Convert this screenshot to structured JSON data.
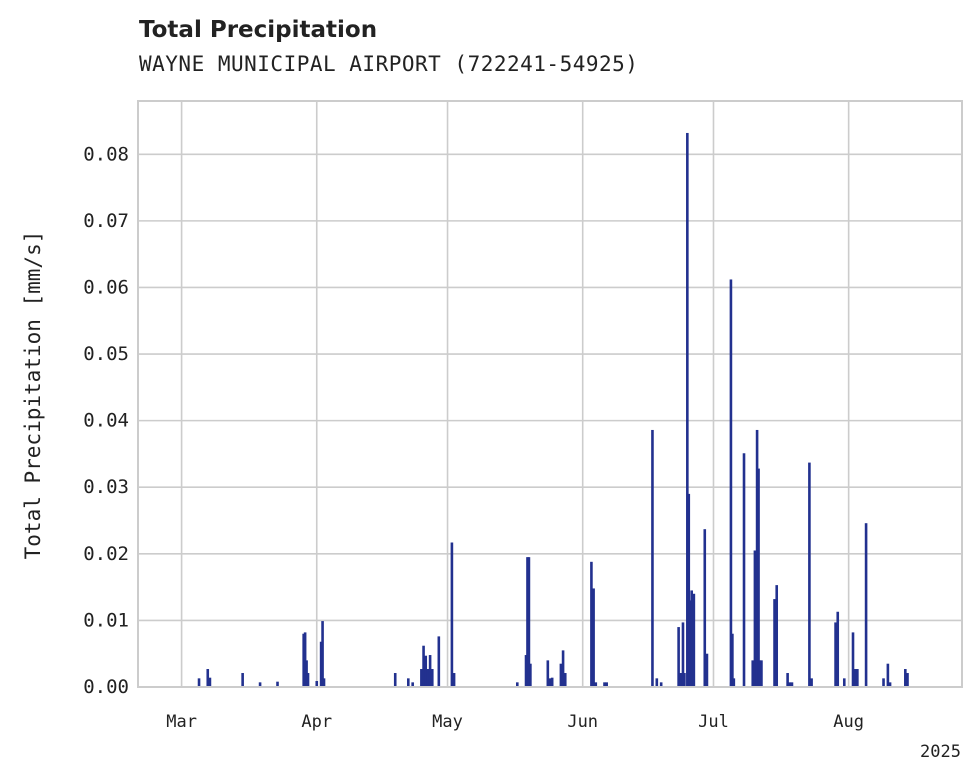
{
  "chart_data": {
    "type": "bar",
    "title": "Total Precipitation",
    "subtitle": "WAYNE MUNICIPAL AIRPORT (722241-54925)",
    "xlabel": "",
    "ylabel": "Total Precipitation [mm/s]",
    "year_label": "2025",
    "xlim": [
      "2025-02-19",
      "2025-08-27"
    ],
    "ylim": [
      0,
      0.088
    ],
    "yticks": [
      0.0,
      0.01,
      0.02,
      0.03,
      0.04,
      0.05,
      0.06,
      0.07,
      0.08
    ],
    "ytick_labels": [
      "0.00",
      "0.01",
      "0.02",
      "0.03",
      "0.04",
      "0.05",
      "0.06",
      "0.07",
      "0.08"
    ],
    "xticks": [
      {
        "date": "2025-03-01",
        "label": "Mar"
      },
      {
        "date": "2025-04-01",
        "label": "Apr"
      },
      {
        "date": "2025-05-01",
        "label": "May"
      },
      {
        "date": "2025-06-01",
        "label": "Jun"
      },
      {
        "date": "2025-07-01",
        "label": "Jul"
      },
      {
        "date": "2025-08-01",
        "label": "Aug"
      }
    ],
    "grid": true,
    "bar_color": "#22318f",
    "series": [
      {
        "name": "Total Precipitation",
        "points": [
          {
            "x": "2025-03-05",
            "y": 0.0013
          },
          {
            "x": "2025-03-07",
            "y": 0.0027
          },
          {
            "x": "2025-03-07T12:00",
            "y": 0.0014
          },
          {
            "x": "2025-03-15",
            "y": 0.0021
          },
          {
            "x": "2025-03-19",
            "y": 0.0007
          },
          {
            "x": "2025-03-23",
            "y": 0.0008
          },
          {
            "x": "2025-03-29",
            "y": 0.008
          },
          {
            "x": "2025-03-29T08:00",
            "y": 0.0082
          },
          {
            "x": "2025-03-29T16:00",
            "y": 0.004
          },
          {
            "x": "2025-03-30",
            "y": 0.0021
          },
          {
            "x": "2025-04-01",
            "y": 0.0009
          },
          {
            "x": "2025-04-02",
            "y": 0.0068
          },
          {
            "x": "2025-04-02T08:00",
            "y": 0.0099
          },
          {
            "x": "2025-04-02T16:00",
            "y": 0.0013
          },
          {
            "x": "2025-04-19",
            "y": 0.0021
          },
          {
            "x": "2025-04-22",
            "y": 0.0013
          },
          {
            "x": "2025-04-23",
            "y": 0.0007
          },
          {
            "x": "2025-04-25",
            "y": 0.0027
          },
          {
            "x": "2025-04-25T12:00",
            "y": 0.0062
          },
          {
            "x": "2025-04-26",
            "y": 0.0047
          },
          {
            "x": "2025-04-26T12:00",
            "y": 0.0027
          },
          {
            "x": "2025-04-27",
            "y": 0.0048
          },
          {
            "x": "2025-04-27T12:00",
            "y": 0.0027
          },
          {
            "x": "2025-04-29",
            "y": 0.0076
          },
          {
            "x": "2025-05-02",
            "y": 0.0217
          },
          {
            "x": "2025-05-02T12:00",
            "y": 0.0021
          },
          {
            "x": "2025-05-17",
            "y": 0.0007
          },
          {
            "x": "2025-05-19",
            "y": 0.0048
          },
          {
            "x": "2025-05-19T08:00",
            "y": 0.0195
          },
          {
            "x": "2025-05-19T16:00",
            "y": 0.0195
          },
          {
            "x": "2025-05-20",
            "y": 0.0035
          },
          {
            "x": "2025-05-24",
            "y": 0.004
          },
          {
            "x": "2025-05-24T12:00",
            "y": 0.0013
          },
          {
            "x": "2025-05-25",
            "y": 0.0014
          },
          {
            "x": "2025-05-27",
            "y": 0.0035
          },
          {
            "x": "2025-05-27T12:00",
            "y": 0.0055
          },
          {
            "x": "2025-05-28",
            "y": 0.0021
          },
          {
            "x": "2025-06-03",
            "y": 0.0188
          },
          {
            "x": "2025-06-03T12:00",
            "y": 0.0148
          },
          {
            "x": "2025-06-04",
            "y": 0.0007
          },
          {
            "x": "2025-06-06",
            "y": 0.0007
          },
          {
            "x": "2025-06-06T12:00",
            "y": 0.0007
          },
          {
            "x": "2025-06-17",
            "y": 0.0386
          },
          {
            "x": "2025-06-18",
            "y": 0.0013
          },
          {
            "x": "2025-06-19",
            "y": 0.0007
          },
          {
            "x": "2025-06-23",
            "y": 0.009
          },
          {
            "x": "2025-06-23T12:00",
            "y": 0.0021
          },
          {
            "x": "2025-06-24",
            "y": 0.0097
          },
          {
            "x": "2025-06-24T08:00",
            "y": 0.0021
          },
          {
            "x": "2025-06-25",
            "y": 0.0832
          },
          {
            "x": "2025-06-25T08:00",
            "y": 0.029
          },
          {
            "x": "2025-06-25T16:00",
            "y": 0.013
          },
          {
            "x": "2025-06-26",
            "y": 0.0145
          },
          {
            "x": "2025-06-26T12:00",
            "y": 0.014
          },
          {
            "x": "2025-06-29",
            "y": 0.0237
          },
          {
            "x": "2025-06-29T12:00",
            "y": 0.005
          },
          {
            "x": "2025-07-05",
            "y": 0.0612
          },
          {
            "x": "2025-07-05T08:00",
            "y": 0.008
          },
          {
            "x": "2025-07-05T16:00",
            "y": 0.0013
          },
          {
            "x": "2025-07-08",
            "y": 0.0351
          },
          {
            "x": "2025-07-10",
            "y": 0.004
          },
          {
            "x": "2025-07-10T12:00",
            "y": 0.0205
          },
          {
            "x": "2025-07-11",
            "y": 0.0386
          },
          {
            "x": "2025-07-11T08:00",
            "y": 0.0328
          },
          {
            "x": "2025-07-11T16:00",
            "y": 0.004
          },
          {
            "x": "2025-07-12",
            "y": 0.004
          },
          {
            "x": "2025-07-15",
            "y": 0.0132
          },
          {
            "x": "2025-07-15T12:00",
            "y": 0.0153
          },
          {
            "x": "2025-07-18",
            "y": 0.0021
          },
          {
            "x": "2025-07-18T12:00",
            "y": 0.0007
          },
          {
            "x": "2025-07-19",
            "y": 0.0007
          },
          {
            "x": "2025-07-23",
            "y": 0.0337
          },
          {
            "x": "2025-07-23T12:00",
            "y": 0.0013
          },
          {
            "x": "2025-07-29",
            "y": 0.0097
          },
          {
            "x": "2025-07-29T12:00",
            "y": 0.0113
          },
          {
            "x": "2025-07-31",
            "y": 0.0013
          },
          {
            "x": "2025-08-02",
            "y": 0.0082
          },
          {
            "x": "2025-08-02T12:00",
            "y": 0.0027
          },
          {
            "x": "2025-08-03",
            "y": 0.0027
          },
          {
            "x": "2025-08-05",
            "y": 0.0246
          },
          {
            "x": "2025-08-09",
            "y": 0.0013
          },
          {
            "x": "2025-08-10",
            "y": 0.0035
          },
          {
            "x": "2025-08-10T12:00",
            "y": 0.0007
          },
          {
            "x": "2025-08-14",
            "y": 0.0027
          },
          {
            "x": "2025-08-14T12:00",
            "y": 0.0021
          }
        ]
      }
    ]
  }
}
